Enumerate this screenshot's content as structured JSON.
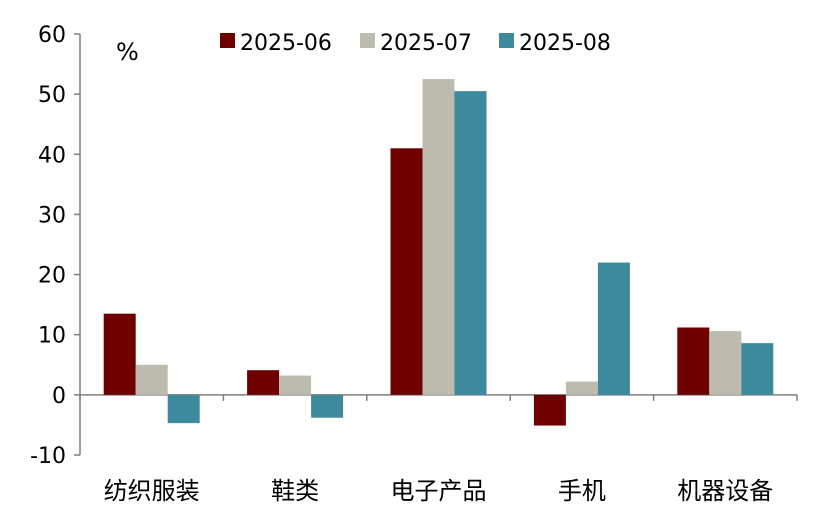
{
  "chart_data": {
    "type": "bar",
    "unit": "%",
    "categories": [
      "纺织服装",
      "鞋类",
      "电子产品",
      "手机",
      "机器设备"
    ],
    "series": [
      {
        "name": "2025-06",
        "color": "#6e0000",
        "values": [
          13.5,
          4.1,
          41.0,
          -5.1,
          11.2
        ]
      },
      {
        "name": "2025-07",
        "color": "#bcbbae",
        "values": [
          5.0,
          3.2,
          52.5,
          2.2,
          10.6
        ]
      },
      {
        "name": "2025-08",
        "color": "#3c8a9b",
        "values": [
          -4.7,
          -3.8,
          50.5,
          22.0,
          8.6
        ]
      }
    ],
    "ylim": [
      -10,
      60
    ],
    "yticks": [
      -10,
      0,
      10,
      20,
      30,
      40,
      50,
      60
    ],
    "legend_position": "top",
    "grid": false
  }
}
